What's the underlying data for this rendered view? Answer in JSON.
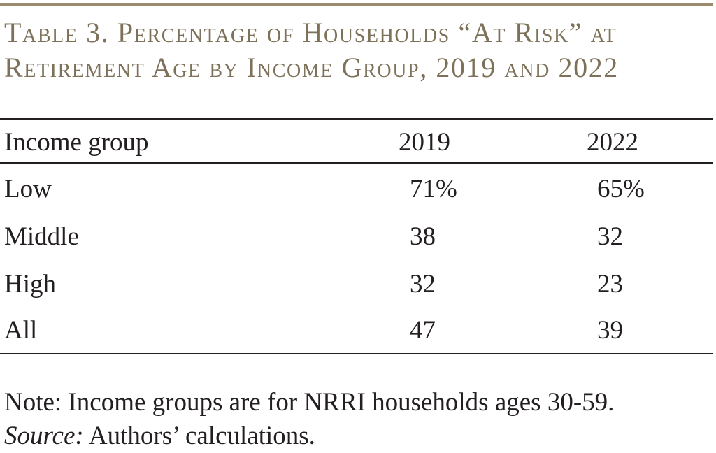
{
  "table": {
    "title_line1": "Table 3. Percentage of Households “At Risk” at",
    "title_line2": "Retirement Age by Income Group, 2019 and 2022",
    "headers": [
      "Income group",
      "2019",
      "2022"
    ],
    "rows": [
      {
        "group": "Low",
        "y2019": "71%",
        "y2022": "65%"
      },
      {
        "group": "Middle",
        "y2019": "38",
        "y2022": "32"
      },
      {
        "group": "High",
        "y2019": "32",
        "y2022": "23"
      },
      {
        "group": "All",
        "y2019": "47",
        "y2022": "39"
      }
    ]
  },
  "notes": {
    "note": "Note: Income groups are for NRRI households ages 30-59.",
    "source_label": "Source:",
    "source_text": " Authors’ calculations."
  },
  "colors": {
    "title": "#7d7259",
    "accent_rule": "#9a8b6e",
    "text": "#231f20"
  }
}
